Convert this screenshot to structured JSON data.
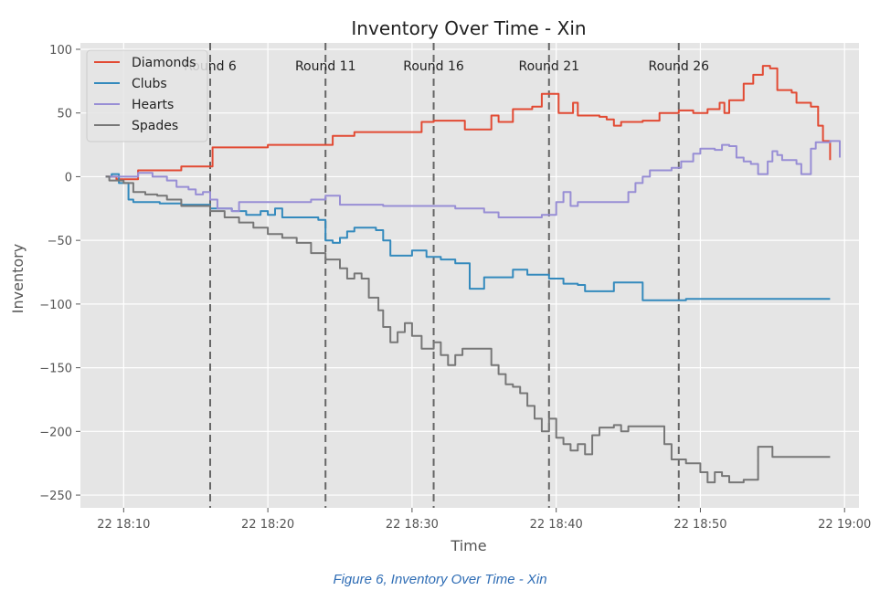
{
  "caption": "Figure 6, Inventory Over Time - Xin",
  "chart_data": {
    "type": "line",
    "title": "Inventory Over Time - Xin",
    "xlabel": "Time",
    "ylabel": "Inventory",
    "xlim": [
      "18:07",
      "19:01"
    ],
    "ylim": [
      -260,
      105
    ],
    "x_ticks": [
      "18:10",
      "18:20",
      "18:30",
      "18:40",
      "18:50",
      "19:00"
    ],
    "x_tick_labels": [
      "22 18:10",
      "22 18:20",
      "22 18:30",
      "22 18:40",
      "22 18:50",
      "22 19:00"
    ],
    "y_ticks": [
      100,
      50,
      0,
      -50,
      -100,
      -150,
      -200,
      -250
    ],
    "y_tick_labels": [
      "100",
      "50",
      "0",
      "−50",
      "−100",
      "−150",
      "−200",
      "−250"
    ],
    "grid": true,
    "legend_position": "top-left",
    "colors": {
      "background": "#e5e5e5",
      "grid": "#ffffff",
      "vline": "#666666"
    },
    "vlines": [
      {
        "x": "18:16",
        "label": "Round 6"
      },
      {
        "x": "18:24",
        "label": "Round 11"
      },
      {
        "x": "18:31:30",
        "label": "Round 16"
      },
      {
        "x": "18:39:30",
        "label": "Round 21"
      },
      {
        "x": "18:48:30",
        "label": "Round 26"
      }
    ],
    "series": [
      {
        "name": "Diamonds",
        "color": "#e24a33",
        "points": [
          [
            "18:08:45",
            0
          ],
          [
            "18:09:30",
            -2
          ],
          [
            "18:10:30",
            -2
          ],
          [
            "18:11",
            5
          ],
          [
            "18:13:30",
            5
          ],
          [
            "18:14",
            8
          ],
          [
            "18:15:50",
            8
          ],
          [
            "18:16:10",
            23
          ],
          [
            "18:19",
            23
          ],
          [
            "18:20",
            25
          ],
          [
            "18:23:30",
            25
          ],
          [
            "18:24:30",
            32
          ],
          [
            "18:25:30",
            32
          ],
          [
            "18:26",
            35
          ],
          [
            "18:30",
            35
          ],
          [
            "18:30:40",
            43
          ],
          [
            "18:31:30",
            44
          ],
          [
            "18:33:20",
            44
          ],
          [
            "18:33:40",
            37
          ],
          [
            "18:35",
            37
          ],
          [
            "18:35:30",
            48
          ],
          [
            "18:36",
            43
          ],
          [
            "18:36:40",
            43
          ],
          [
            "18:37",
            53
          ],
          [
            "18:38:20",
            55
          ],
          [
            "18:39",
            65
          ],
          [
            "18:39:40",
            65
          ],
          [
            "18:40:10",
            50
          ],
          [
            "18:40:40",
            50
          ],
          [
            "18:41:10",
            58
          ],
          [
            "18:41:30",
            48
          ],
          [
            "18:43",
            47
          ],
          [
            "18:43:30",
            45
          ],
          [
            "18:44",
            40
          ],
          [
            "18:44:30",
            43
          ],
          [
            "18:46",
            44
          ],
          [
            "18:47:10",
            50
          ],
          [
            "18:48:30",
            52
          ],
          [
            "18:49:30",
            50
          ],
          [
            "18:50:30",
            53
          ],
          [
            "18:51:20",
            58
          ],
          [
            "18:51:40",
            50
          ],
          [
            "18:52",
            60
          ],
          [
            "18:53",
            73
          ],
          [
            "18:53:40",
            80
          ],
          [
            "18:54:20",
            87
          ],
          [
            "18:54:50",
            85
          ],
          [
            "18:55:20",
            68
          ],
          [
            "18:56:20",
            66
          ],
          [
            "18:56:40",
            58
          ],
          [
            "18:57:40",
            55
          ],
          [
            "18:58:10",
            40
          ],
          [
            "18:58:30",
            28
          ],
          [
            "18:59",
            13
          ]
        ]
      },
      {
        "name": "Clubs",
        "color": "#348abd",
        "points": [
          [
            "18:08:45",
            0
          ],
          [
            "18:09:10",
            2
          ],
          [
            "18:09:40",
            -5
          ],
          [
            "18:10:20",
            -18
          ],
          [
            "18:10:40",
            -20
          ],
          [
            "18:12",
            -20
          ],
          [
            "18:12:30",
            -21
          ],
          [
            "18:14",
            -22
          ],
          [
            "18:16",
            -25
          ],
          [
            "18:17:30",
            -27
          ],
          [
            "18:18:30",
            -30
          ],
          [
            "18:19:30",
            -27
          ],
          [
            "18:20",
            -30
          ],
          [
            "18:20:30",
            -25
          ],
          [
            "18:21",
            -32
          ],
          [
            "18:22",
            -32
          ],
          [
            "18:23:30",
            -34
          ],
          [
            "18:24",
            -50
          ],
          [
            "18:24:30",
            -52
          ],
          [
            "18:25",
            -48
          ],
          [
            "18:25:30",
            -43
          ],
          [
            "18:26",
            -40
          ],
          [
            "18:27:30",
            -42
          ],
          [
            "18:28",
            -50
          ],
          [
            "18:28:30",
            -62
          ],
          [
            "18:29:30",
            -62
          ],
          [
            "18:30",
            -58
          ],
          [
            "18:31",
            -63
          ],
          [
            "18:32",
            -65
          ],
          [
            "18:33",
            -68
          ],
          [
            "18:34",
            -88
          ],
          [
            "18:34:30",
            -88
          ],
          [
            "18:35",
            -79
          ],
          [
            "18:36",
            -79
          ],
          [
            "18:37",
            -73
          ],
          [
            "18:38",
            -77
          ],
          [
            "18:39:30",
            -80
          ],
          [
            "18:40:30",
            -84
          ],
          [
            "18:41:30",
            -85
          ],
          [
            "18:42",
            -90
          ],
          [
            "18:43:30",
            -90
          ],
          [
            "18:44",
            -83
          ],
          [
            "18:45:30",
            -83
          ],
          [
            "18:46",
            -97
          ],
          [
            "18:48:30",
            -97
          ],
          [
            "18:49",
            -96
          ],
          [
            "18:59",
            -96
          ]
        ]
      },
      {
        "name": "Hearts",
        "color": "#988ed5",
        "points": [
          [
            "18:08:45",
            0
          ],
          [
            "18:10:30",
            0
          ],
          [
            "18:11",
            3
          ],
          [
            "18:12",
            0
          ],
          [
            "18:13",
            -3
          ],
          [
            "18:13:40",
            -8
          ],
          [
            "18:14:30",
            -10
          ],
          [
            "18:15",
            -14
          ],
          [
            "18:15:30",
            -12
          ],
          [
            "18:16",
            -18
          ],
          [
            "18:16:30",
            -25
          ],
          [
            "18:17:30",
            -27
          ],
          [
            "18:18",
            -20
          ],
          [
            "18:20",
            -20
          ],
          [
            "18:23",
            -18
          ],
          [
            "18:24",
            -15
          ],
          [
            "18:25",
            -22
          ],
          [
            "18:28",
            -23
          ],
          [
            "18:32",
            -23
          ],
          [
            "18:33",
            -25
          ],
          [
            "18:35",
            -28
          ],
          [
            "18:36",
            -32
          ],
          [
            "18:39",
            -30
          ],
          [
            "18:40",
            -20
          ],
          [
            "18:40:30",
            -12
          ],
          [
            "18:41",
            -23
          ],
          [
            "18:41:30",
            -20
          ],
          [
            "18:44",
            -20
          ],
          [
            "18:45",
            -12
          ],
          [
            "18:45:30",
            -5
          ],
          [
            "18:46",
            0
          ],
          [
            "18:46:30",
            5
          ],
          [
            "18:48",
            7
          ],
          [
            "18:48:40",
            12
          ],
          [
            "18:49:30",
            18
          ],
          [
            "18:50",
            22
          ],
          [
            "18:51",
            21
          ],
          [
            "18:51:30",
            25
          ],
          [
            "18:52",
            24
          ],
          [
            "18:52:30",
            15
          ],
          [
            "18:53",
            12
          ],
          [
            "18:53:30",
            10
          ],
          [
            "18:54",
            2
          ],
          [
            "18:54:40",
            12
          ],
          [
            "18:55",
            20
          ],
          [
            "18:55:20",
            17
          ],
          [
            "18:55:40",
            13
          ],
          [
            "18:56:40",
            10
          ],
          [
            "18:57",
            2
          ],
          [
            "18:57:40",
            22
          ],
          [
            "18:58",
            27
          ],
          [
            "18:59",
            28
          ],
          [
            "18:59:40",
            15
          ]
        ]
      },
      {
        "name": "Spades",
        "color": "#777777",
        "points": [
          [
            "18:08:45",
            0
          ],
          [
            "18:09",
            -3
          ],
          [
            "18:10",
            -5
          ],
          [
            "18:10:40",
            -12
          ],
          [
            "18:11:30",
            -14
          ],
          [
            "18:12:20",
            -15
          ],
          [
            "18:13",
            -18
          ],
          [
            "18:14",
            -23
          ],
          [
            "18:16",
            -27
          ],
          [
            "18:17",
            -32
          ],
          [
            "18:18",
            -36
          ],
          [
            "18:19",
            -40
          ],
          [
            "18:20",
            -45
          ],
          [
            "18:21",
            -48
          ],
          [
            "18:22",
            -52
          ],
          [
            "18:23",
            -60
          ],
          [
            "18:24",
            -65
          ],
          [
            "18:25",
            -72
          ],
          [
            "18:25:30",
            -80
          ],
          [
            "18:26",
            -76
          ],
          [
            "18:26:30",
            -80
          ],
          [
            "18:27",
            -95
          ],
          [
            "18:27:40",
            -105
          ],
          [
            "18:28",
            -118
          ],
          [
            "18:28:30",
            -130
          ],
          [
            "18:29",
            -122
          ],
          [
            "18:29:30",
            -115
          ],
          [
            "18:30",
            -125
          ],
          [
            "18:30:40",
            -135
          ],
          [
            "18:31:30",
            -130
          ],
          [
            "18:32",
            -140
          ],
          [
            "18:32:30",
            -148
          ],
          [
            "18:33",
            -140
          ],
          [
            "18:33:30",
            -135
          ],
          [
            "18:35",
            -135
          ],
          [
            "18:35:30",
            -148
          ],
          [
            "18:36",
            -155
          ],
          [
            "18:36:30",
            -163
          ],
          [
            "18:37",
            -165
          ],
          [
            "18:37:30",
            -170
          ],
          [
            "18:38",
            -180
          ],
          [
            "18:38:30",
            -190
          ],
          [
            "18:39",
            -200
          ],
          [
            "18:39:30",
            -190
          ],
          [
            "18:40",
            -205
          ],
          [
            "18:40:30",
            -210
          ],
          [
            "18:41",
            -215
          ],
          [
            "18:41:30",
            -210
          ],
          [
            "18:42",
            -218
          ],
          [
            "18:42:30",
            -203
          ],
          [
            "18:43",
            -197
          ],
          [
            "18:44",
            -195
          ],
          [
            "18:44:30",
            -200
          ],
          [
            "18:45",
            -196
          ],
          [
            "18:47",
            -196
          ],
          [
            "18:47:30",
            -210
          ],
          [
            "18:48",
            -222
          ],
          [
            "18:49",
            -225
          ],
          [
            "18:50",
            -232
          ],
          [
            "18:50:30",
            -240
          ],
          [
            "18:51",
            -232
          ],
          [
            "18:51:30",
            -235
          ],
          [
            "18:52",
            -240
          ],
          [
            "18:53",
            -238
          ],
          [
            "18:54",
            -212
          ],
          [
            "18:55",
            -220
          ],
          [
            "18:59",
            -220
          ]
        ]
      }
    ]
  }
}
